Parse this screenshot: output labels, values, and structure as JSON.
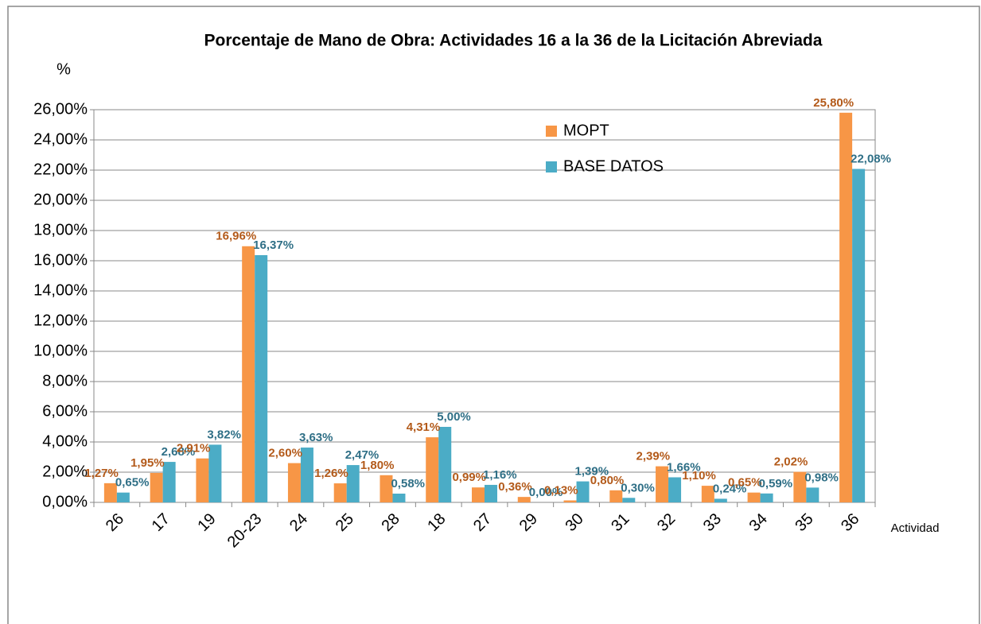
{
  "chart_data": {
    "type": "bar",
    "title": "Porcentaje de Mano de Obra: Actividades 16 a la 36 de la Licitación Abreviada",
    "y_label": "%",
    "x_label": "Actividad",
    "categories": [
      "26",
      "17",
      "19",
      "20-23",
      "24",
      "25",
      "28",
      "18",
      "27",
      "29",
      "30",
      "31",
      "32",
      "33",
      "34",
      "35",
      "36"
    ],
    "series": [
      {
        "name": "MOPT",
        "color": "#f79646",
        "label_color": "#b35a1a",
        "values": [
          1.27,
          1.95,
          2.91,
          16.96,
          2.6,
          1.26,
          1.8,
          4.31,
          0.99,
          0.36,
          0.13,
          0.8,
          2.39,
          1.1,
          0.65,
          2.02,
          25.8
        ],
        "value_labels": [
          "1,27%",
          "1,95%",
          "2,91%",
          "16,96%",
          "2,60%",
          "1,26%",
          "1,80%",
          "4,31%",
          "0,99%",
          "0,36%",
          "0,13%",
          "0,80%",
          "2,39%",
          "1,10%",
          "0,65%",
          "2,02%",
          "25,80%"
        ]
      },
      {
        "name": "BASE DATOS",
        "color": "#4bacc6",
        "label_color": "#2f6f86",
        "values": [
          0.65,
          2.68,
          3.82,
          16.37,
          3.63,
          2.47,
          0.58,
          5.0,
          1.16,
          0.0,
          1.39,
          0.3,
          1.66,
          0.24,
          0.59,
          0.98,
          22.08
        ],
        "value_labels": [
          "0,65%",
          "2,68%",
          "3,82%",
          "16,37%",
          "3,63%",
          "2,47%",
          "0,58%",
          "5,00%",
          "1,16%",
          "0,00%",
          "1,39%",
          "0,30%",
          "1,66%",
          "0,24%",
          "0,59%",
          "0,98%",
          "22,08%"
        ]
      }
    ],
    "ylim": [
      0,
      26
    ],
    "yticks": [
      {
        "value": 0,
        "label": "0,00%"
      },
      {
        "value": 2,
        "label": "2,00%"
      },
      {
        "value": 4,
        "label": "4,00%"
      },
      {
        "value": 6,
        "label": "6,00%"
      },
      {
        "value": 8,
        "label": "8,00%"
      },
      {
        "value": 10,
        "label": "10,00%"
      },
      {
        "value": 12,
        "label": "12,00%"
      },
      {
        "value": 14,
        "label": "14,00%"
      },
      {
        "value": 16,
        "label": "16,00%"
      },
      {
        "value": 18,
        "label": "18,00%"
      },
      {
        "value": 20,
        "label": "20,00%"
      },
      {
        "value": 22,
        "label": "22,00%"
      },
      {
        "value": 24,
        "label": "24,00%"
      },
      {
        "value": 26,
        "label": "26,00%"
      }
    ],
    "grid": true
  }
}
